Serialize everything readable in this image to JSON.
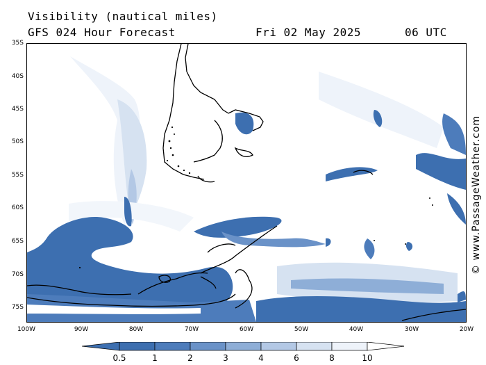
{
  "header": {
    "title": "Visibility (nautical miles)",
    "model": "GFS 024 Hour Forecast",
    "date": "Fri 02 May 2025",
    "time": "06 UTC"
  },
  "credit": "© www.PassageWeather.com",
  "map": {
    "lat_labels": [
      "35S",
      "40S",
      "45S",
      "50S",
      "55S",
      "60S",
      "65S",
      "70S",
      "75S"
    ],
    "lon_labels": [
      "100W",
      "90W",
      "80W",
      "70W",
      "60W",
      "50W",
      "40W",
      "30W",
      "20W"
    ],
    "lat_range": [
      -77.5,
      -35
    ],
    "lon_range": [
      -100,
      -20
    ]
  },
  "colorbar": {
    "labels": [
      "0.5",
      "1",
      "2",
      "3",
      "4",
      "6",
      "8",
      "10"
    ],
    "colors": [
      "#3d6fb0",
      "#4d7cbb",
      "#6a92c8",
      "#8eaed7",
      "#b3c8e5",
      "#d6e2f1",
      "#eef3fa",
      "#ffffff"
    ]
  }
}
